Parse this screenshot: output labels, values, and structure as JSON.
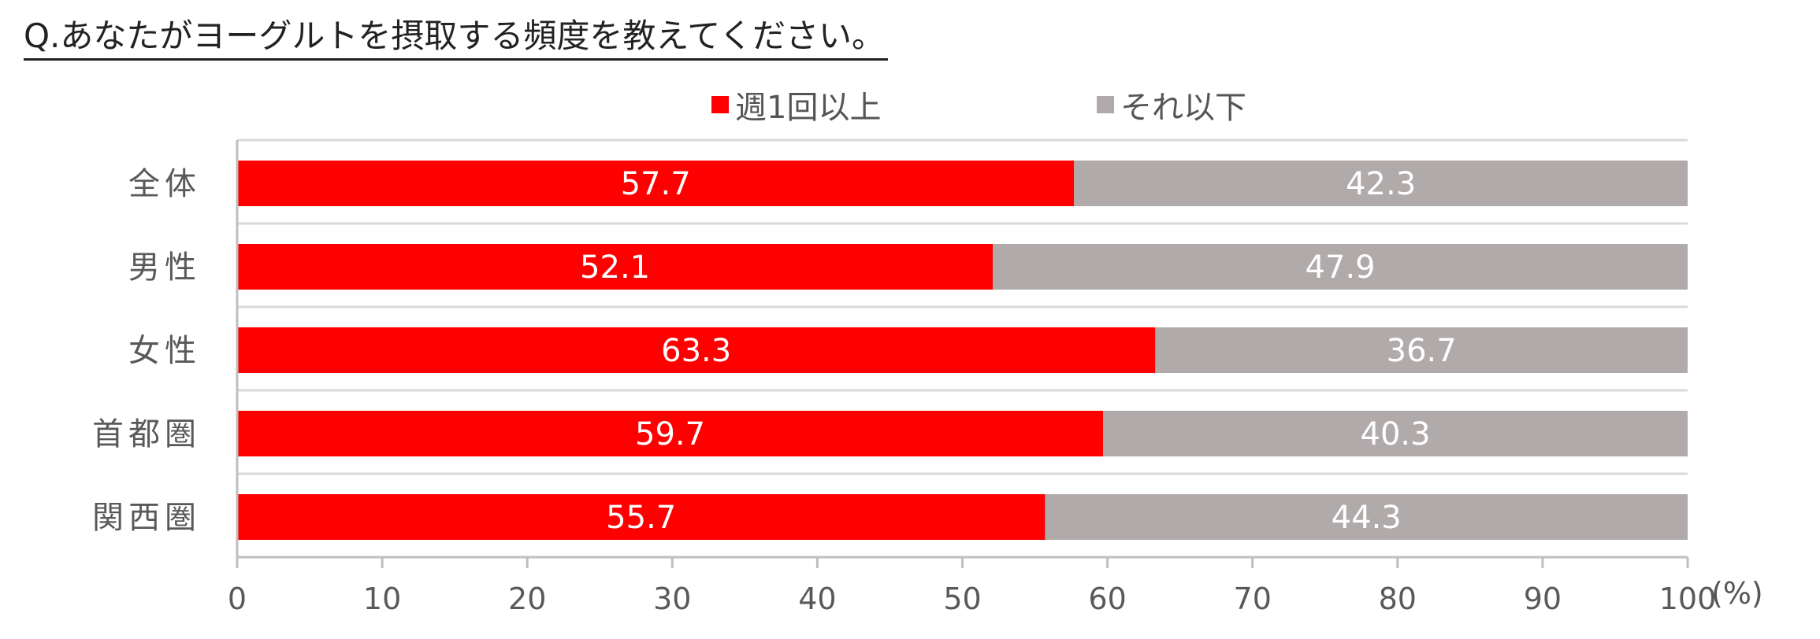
{
  "question": "Q.あなたがヨーグルトを摂取する頻度を教えてください。",
  "unit_label": "(%)",
  "colors": {
    "series1": "#ff0000",
    "series2": "#b0aaaa",
    "grid": "#d9d9d9",
    "axis": "#bfbfbf",
    "text": "#595959"
  },
  "chart_data": {
    "type": "bar",
    "orientation": "horizontal",
    "stacked": true,
    "categories": [
      "全体",
      "男性",
      "女性",
      "首都圏",
      "関西圏"
    ],
    "series": [
      {
        "name": "週1回以上",
        "values": [
          57.7,
          52.1,
          63.3,
          59.7,
          55.7
        ]
      },
      {
        "name": "それ以下",
        "values": [
          42.3,
          47.9,
          36.7,
          40.3,
          44.3
        ]
      }
    ],
    "xlim": [
      0,
      100
    ],
    "xticks": [
      0,
      10,
      20,
      30,
      40,
      50,
      60,
      70,
      80,
      90,
      100
    ],
    "xlabel": "(%)",
    "legend_position": "top",
    "data_labels": true,
    "grid": true
  }
}
